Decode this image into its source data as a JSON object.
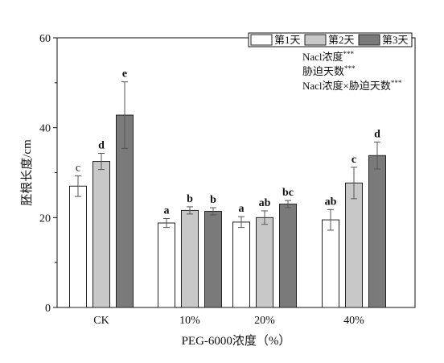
{
  "chart_data": {
    "type": "bar",
    "title": "",
    "xlabel": "PEG-6000浓度（%）",
    "ylabel": "胚根长度/cm",
    "ylim": [
      0,
      60
    ],
    "yticks": [
      "0",
      "20",
      "40",
      "60"
    ],
    "categories": [
      "CK",
      "10%",
      "20%",
      "40%"
    ],
    "series": [
      {
        "name": "第1天",
        "color": "#ffffff",
        "values": [
          27.0,
          18.8,
          19.0,
          19.5
        ],
        "errors": [
          2.3,
          1.0,
          1.2,
          2.3
        ],
        "letters": [
          "c",
          "a",
          "a",
          "ab"
        ]
      },
      {
        "name": "第2天",
        "color": "#c8c8c8",
        "values": [
          32.5,
          21.6,
          20.0,
          27.7
        ],
        "errors": [
          1.8,
          0.8,
          1.5,
          3.5
        ],
        "letters": [
          "d",
          "b",
          "ab",
          "c"
        ]
      },
      {
        "name": "第3天",
        "color": "#7a7a7a",
        "values": [
          42.8,
          21.4,
          23.0,
          33.8
        ],
        "errors": [
          7.4,
          0.8,
          0.8,
          3.0
        ],
        "letters": [
          "e",
          "b",
          "bc",
          "d"
        ]
      }
    ],
    "legend_position": "top-right",
    "annotations": [
      {
        "text": "Nacl浓度",
        "sup": "***"
      },
      {
        "text": "胁迫天数",
        "sup": "***"
      },
      {
        "text": "Nacl浓度×胁迫天数",
        "sup": "***"
      }
    ],
    "grid": false
  }
}
